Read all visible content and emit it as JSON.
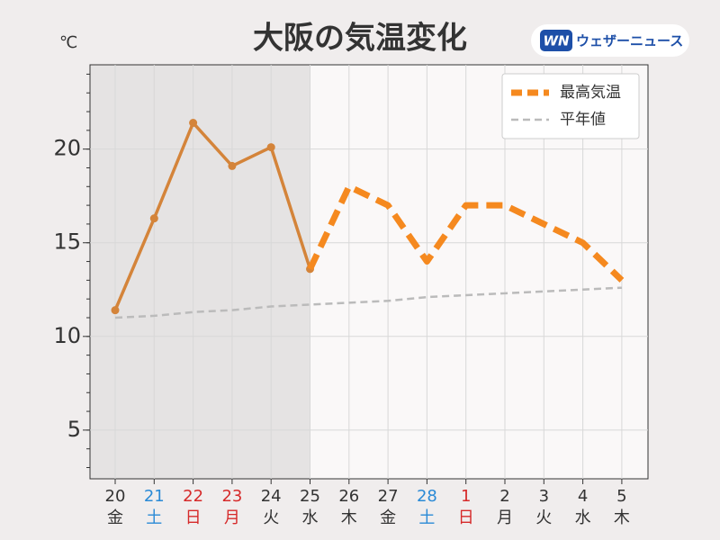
{
  "chart_data": {
    "type": "line",
    "title": "大阪の気温変化",
    "unit_label": "℃",
    "logo": {
      "mark": "WN",
      "text": "ウェザーニュース"
    },
    "categories": [
      "20",
      "21",
      "22",
      "23",
      "24",
      "25",
      "26",
      "27",
      "28",
      "1",
      "2",
      "3",
      "4",
      "5"
    ],
    "weekdays": [
      "金",
      "土",
      "日",
      "月",
      "火",
      "水",
      "木",
      "金",
      "土",
      "日",
      "月",
      "火",
      "水",
      "木"
    ],
    "category_colors": [
      "#333",
      "#2a8ad6",
      "#d62a2a",
      "#d62a2a",
      "#333",
      "#333",
      "#333",
      "#333",
      "#2a8ad6",
      "#d62a2a",
      "#333",
      "#333",
      "#333",
      "#333"
    ],
    "series": [
      {
        "color": "#d4843a",
        "style": "solid-markers",
        "values": [
          11.4,
          16.3,
          21.4,
          19.1,
          20.1,
          13.6,
          null,
          null,
          null,
          null,
          null,
          null,
          null,
          null
        ]
      },
      {
        "name": "最高気温",
        "color": "#f5891f",
        "style": "dashed-thick",
        "values": [
          null,
          null,
          null,
          null,
          null,
          13.6,
          18,
          17,
          14,
          17,
          17,
          16,
          15,
          13
        ]
      },
      {
        "name": "平年値",
        "color": "#bbbbbb",
        "style": "dashed-thin",
        "values": [
          11.0,
          11.1,
          11.3,
          11.4,
          11.6,
          11.7,
          11.8,
          11.9,
          12.1,
          12.2,
          12.3,
          12.4,
          12.5,
          12.6
        ]
      }
    ],
    "ylim": [
      2.4,
      24.5
    ],
    "yticks": [
      5,
      10,
      15,
      20
    ],
    "grid": true,
    "legend": "upper right"
  }
}
